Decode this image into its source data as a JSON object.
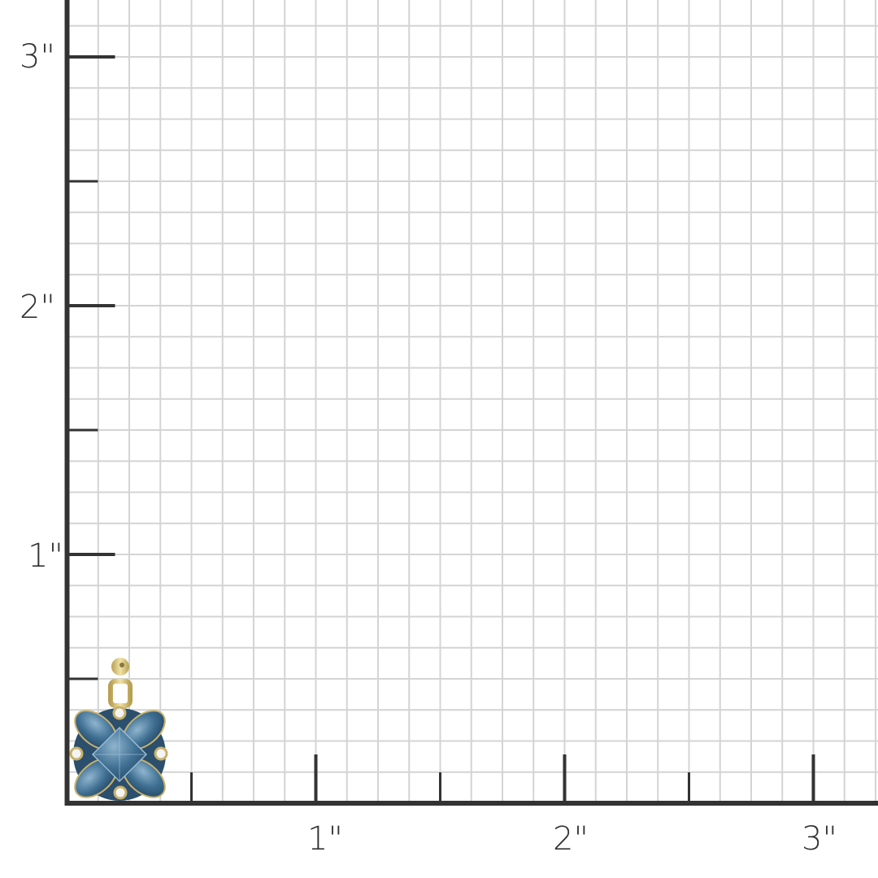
{
  "scale": {
    "unit_label_suffix": "\"",
    "y_axis_labels": [
      "1\"",
      "2\"",
      "3\""
    ],
    "x_axis_labels": [
      "1\"",
      "2\"",
      "3\""
    ],
    "subdivisions_per_inch": 8,
    "grid": true
  },
  "colors": {
    "grid": "#d4d4d4",
    "axis": "#333333",
    "gold": "#d8c57e",
    "stone": "#3f6f92",
    "diamond": "#f2f2f2"
  },
  "product": {
    "icon": "drop-earring-blue-topaz-cluster"
  }
}
